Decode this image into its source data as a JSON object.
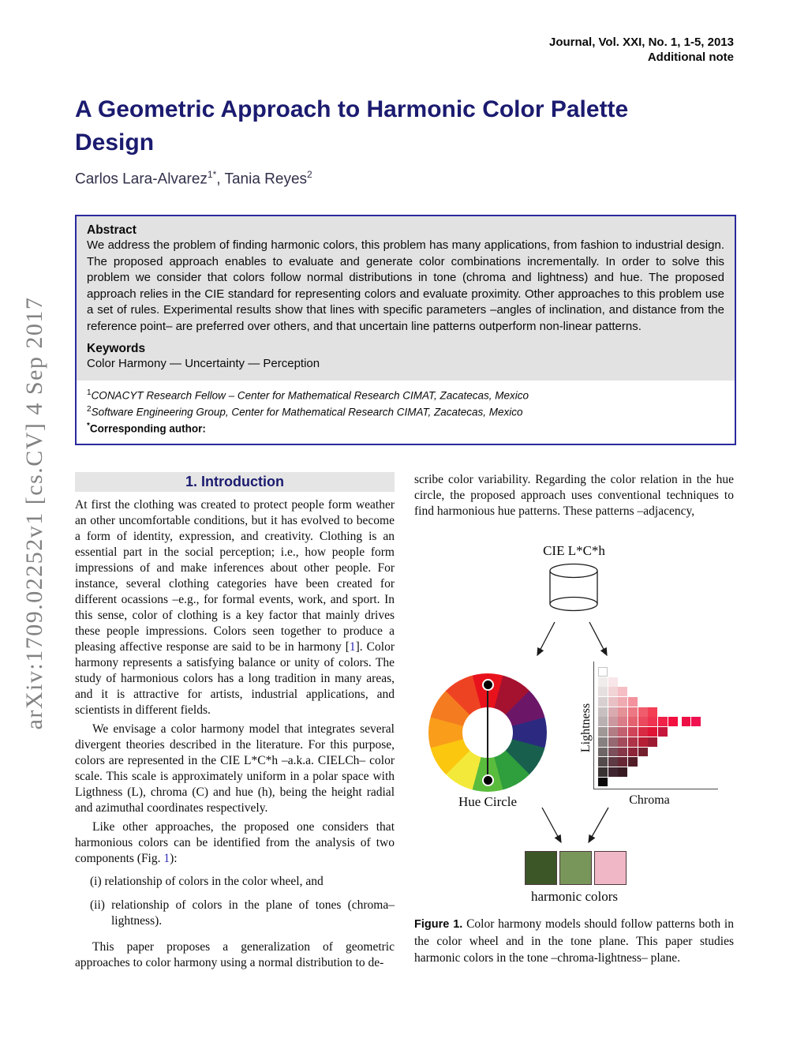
{
  "header": {
    "journal": "Journal, Vol. XXI, No. 1, 1-5, 2013",
    "note": "Additional note"
  },
  "sidebar": {
    "arxiv": "arXiv:1709.02252v1  [cs.CV]  4 Sep 2017"
  },
  "title": "A Geometric Approach to Harmonic Color Palette Design",
  "authors": {
    "a1": "Carlos Lara-Alvarez",
    "a1sup": "1*",
    "sep": ", ",
    "a2": "Tania Reyes",
    "a2sup": "2"
  },
  "colors": {
    "title_navy": "#1b1b70",
    "abstract_border": "#2a2a9e",
    "abstract_bg": "#e2e2e2",
    "heading_band": "#e5e5e5",
    "citation": "#2b2bb5"
  },
  "abstract": {
    "label": "Abstract",
    "text": "We address the problem of finding harmonic colors, this problem has many applications, from fashion to industrial design. The proposed approach enables to evaluate and generate color combinations incrementally. In order to solve this problem we consider that colors follow normal distributions in tone (chroma and lightness) and hue. The proposed approach relies in the CIE standard for representing colors and evaluate proximity. Other approaches to this problem use a set of rules. Experimental results show that lines with specific parameters –angles of inclination, and distance from the reference point– are preferred over others, and that uncertain line patterns outperform non-linear patterns.",
    "keywords_label": "Keywords",
    "keywords": "Color Harmony — Uncertainty — Perception"
  },
  "affiliations": [
    {
      "sup": "1",
      "text": "CONACYT Research Fellow – Center for Mathematical Research CIMAT, Zacatecas, Mexico"
    },
    {
      "sup": "2",
      "text": "Software Engineering Group, Center for Mathematical Research CIMAT, Zacatecas, Mexico"
    }
  ],
  "corresponding": {
    "star": "*",
    "label": "Corresponding author",
    "colon": ":"
  },
  "intro": {
    "heading": "1. Introduction",
    "p1a": "At first the clothing was created to protect people form weather an other uncomfortable conditions, but it has evolved to become a form of identity, expression, and creativity. Clothing is an essential part in the social perception; i.e., how people form impressions of and make inferences about other people. For instance, several clothing categories have been created for different ocassions –e.g., for formal events, work, and sport. In this sense, color of clothing is a key factor that mainly drives these people impressions. Colors seen together to produce a pleasing affective response are said to be in harmony [",
    "p1cite": "1",
    "p1b": "]. Color harmony represents a satisfying balance or unity of colors. The study of harmonious colors has a long tradition in many areas, and it is attractive for artists, industrial applications, and scientists in different fields.",
    "p2": "We envisage a color harmony model that integrates several divergent theories described in the literature. For this purpose, colors are represented in the CIE L*C*h –a.k.a. CIELCh– color scale. This scale is approximately uniform in a polar space with Ligthness (L), chroma (C) and hue (h), being the height radial and azimuthal coordinates respectively.",
    "p3a": "Like other approaches, the proposed one considers that harmonious colors can be identified from the analysis of two components (Fig. ",
    "p3cite": "1",
    "p3b": "):",
    "li1": "(i) relationship of colors in the color wheel, and",
    "li2": "(ii) relationship of colors in the plane of tones (chroma–lightness).",
    "p4": "This paper proposes a generalization of geometric approaches to color harmony using a normal distribution to de-"
  },
  "rightcol": {
    "p1": "scribe color variability. Regarding the color relation in the hue circle, the proposed approach uses conventional techniques to find harmonious hue patterns. These patterns –adjacency,"
  },
  "figure1": {
    "cylinder_label": "CIE L*C*h",
    "hue_wheel": {
      "label": "Hue Circle",
      "segment_colors": [
        "#e8121c",
        "#a51230",
        "#6c1668",
        "#2b2a80",
        "#18604d",
        "#2f9e3c",
        "#5abc3d",
        "#f3e93a",
        "#fbc70f",
        "#f99d1b",
        "#f47b20",
        "#ee4323"
      ]
    },
    "tone_plane": {
      "xlabel": "Chroma",
      "ylabel": "Lightness",
      "rows": [
        [
          "#ffffff"
        ],
        [
          "#f1ecec",
          "#f8e6e8"
        ],
        [
          "#e6dfdf",
          "#f2d3d6",
          "#f5bec4"
        ],
        [
          "#d8d0d0",
          "#e8c0c4",
          "#f0aab2",
          "#f3929e"
        ],
        [
          "#c8c0c0",
          "#d9aab0",
          "#e59198",
          "#ec7884",
          "#f05c6c",
          "#f33e54"
        ],
        [
          "#b9b1b1",
          "#cb98a0",
          "#da7d88",
          "#e4626f",
          "#eb4a5e",
          "#ef3350",
          "#f12147",
          "#f2103f"
        ],
        [
          "#a09797",
          "#b27d85",
          "#c26070",
          "#cf4458",
          "#d92a44",
          "#e01434",
          "#c7163c"
        ],
        [
          "#878080",
          "#966871",
          "#a44c5c",
          "#ae3346",
          "#b51e35",
          "#9e1c33"
        ],
        [
          "#6e6666",
          "#7b505c",
          "#873848",
          "#8e2437",
          "#75202e"
        ],
        [
          "#544c4c",
          "#5e3a44",
          "#672734",
          "#531d28"
        ],
        [
          "#393232",
          "#402630",
          "#381b22"
        ],
        [
          "#0c0909"
        ]
      ],
      "detached": {
        "row": 5,
        "colors": [
          "#ed0f45",
          "#ef1150"
        ]
      }
    },
    "swatches": {
      "label": "harmonic colors",
      "colors": [
        "#3c5628",
        "#79965a",
        "#f0b8c6"
      ]
    },
    "caption_label": "Figure 1.",
    "caption_text": " Color harmony models should follow patterns both in the color wheel and in the tone plane. This paper studies harmonic colors in the tone –chroma-lightness– plane."
  }
}
